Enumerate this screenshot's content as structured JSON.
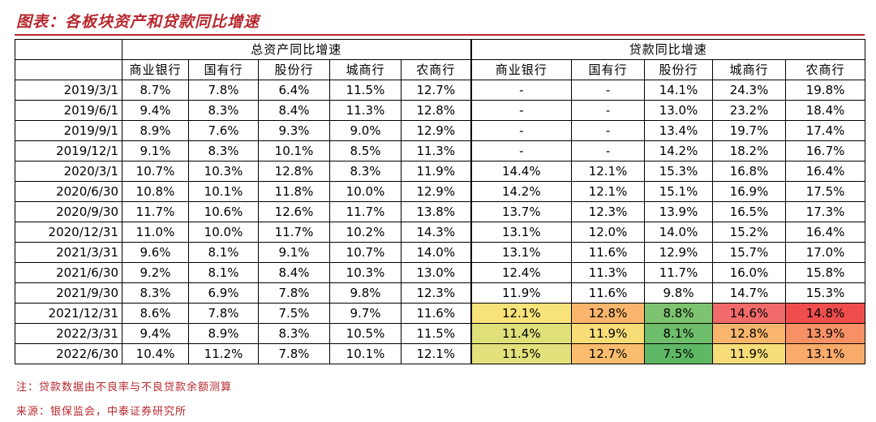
{
  "title": "图表：各板块资产和贷款同比增速",
  "header": {
    "group1": "总资产同比增速",
    "group2": "贷款同比增速",
    "columns": [
      "商业银行",
      "国有行",
      "股份行",
      "城商行",
      "农商行"
    ]
  },
  "rows": [
    {
      "date": "2019/3/1",
      "assets": [
        "8.7%",
        "7.8%",
        "6.4%",
        "11.5%",
        "12.7%"
      ],
      "loans": [
        "-",
        "-",
        "14.1%",
        "24.3%",
        "19.8%"
      ]
    },
    {
      "date": "2019/6/1",
      "assets": [
        "9.4%",
        "8.3%",
        "8.4%",
        "11.3%",
        "12.8%"
      ],
      "loans": [
        "-",
        "-",
        "13.0%",
        "23.2%",
        "18.4%"
      ]
    },
    {
      "date": "2019/9/1",
      "assets": [
        "8.9%",
        "7.6%",
        "9.3%",
        "9.0%",
        "12.9%"
      ],
      "loans": [
        "-",
        "-",
        "13.4%",
        "19.7%",
        "17.4%"
      ]
    },
    {
      "date": "2019/12/1",
      "assets": [
        "9.1%",
        "8.3%",
        "10.1%",
        "8.5%",
        "11.3%"
      ],
      "loans": [
        "-",
        "-",
        "14.2%",
        "18.2%",
        "16.7%"
      ]
    },
    {
      "date": "2020/3/1",
      "assets": [
        "10.7%",
        "10.3%",
        "12.8%",
        "8.3%",
        "11.9%"
      ],
      "loans": [
        "14.4%",
        "12.1%",
        "15.3%",
        "16.8%",
        "16.4%"
      ]
    },
    {
      "date": "2020/6/30",
      "assets": [
        "10.8%",
        "10.1%",
        "11.8%",
        "10.0%",
        "12.9%"
      ],
      "loans": [
        "14.2%",
        "12.1%",
        "15.1%",
        "16.9%",
        "17.5%"
      ]
    },
    {
      "date": "2020/9/30",
      "assets": [
        "11.7%",
        "10.6%",
        "12.6%",
        "11.7%",
        "13.8%"
      ],
      "loans": [
        "13.7%",
        "12.3%",
        "13.9%",
        "16.5%",
        "17.3%"
      ]
    },
    {
      "date": "2020/12/31",
      "assets": [
        "11.0%",
        "10.0%",
        "11.7%",
        "10.2%",
        "14.3%"
      ],
      "loans": [
        "13.1%",
        "12.0%",
        "14.0%",
        "15.2%",
        "16.4%"
      ]
    },
    {
      "date": "2021/3/31",
      "assets": [
        "9.6%",
        "8.1%",
        "9.1%",
        "10.7%",
        "14.0%"
      ],
      "loans": [
        "13.1%",
        "11.6%",
        "12.9%",
        "15.7%",
        "17.0%"
      ]
    },
    {
      "date": "2021/6/30",
      "assets": [
        "9.2%",
        "8.1%",
        "8.4%",
        "10.3%",
        "13.0%"
      ],
      "loans": [
        "12.4%",
        "11.3%",
        "11.7%",
        "16.0%",
        "15.8%"
      ]
    },
    {
      "date": "2021/9/30",
      "assets": [
        "8.3%",
        "6.9%",
        "7.8%",
        "9.8%",
        "12.3%"
      ],
      "loans": [
        "11.9%",
        "11.6%",
        "9.8%",
        "14.7%",
        "15.3%"
      ]
    },
    {
      "date": "2021/12/31",
      "assets": [
        "8.6%",
        "7.8%",
        "7.5%",
        "9.7%",
        "11.6%"
      ],
      "loans": [
        "12.1%",
        "12.8%",
        "8.8%",
        "14.6%",
        "14.8%"
      ],
      "loan_colors": [
        "#f7e37a",
        "#f9b56c",
        "#7ec36f",
        "#f26b6b",
        "#f04e4e"
      ]
    },
    {
      "date": "2022/3/31",
      "assets": [
        "9.4%",
        "8.9%",
        "8.3%",
        "10.5%",
        "11.5%"
      ],
      "loans": [
        "11.4%",
        "11.9%",
        "8.1%",
        "12.8%",
        "13.9%"
      ],
      "loan_colors": [
        "#dfe07a",
        "#f7dd78",
        "#6dbd6a",
        "#f9b56c",
        "#f79064"
      ]
    },
    {
      "date": "2022/6/30",
      "assets": [
        "10.4%",
        "11.2%",
        "7.8%",
        "10.1%",
        "12.1%"
      ],
      "loans": [
        "11.5%",
        "12.7%",
        "7.5%",
        "11.9%",
        "13.1%"
      ],
      "loan_colors": [
        "#e3e17b",
        "#f9bd6d",
        "#5fb865",
        "#f7dd78",
        "#f9ab6a"
      ]
    }
  ],
  "notes": {
    "note": "注：贷款数据由不良率与不良贷款余额测算",
    "source": "来源：银保监会，中泰证券研究所"
  },
  "colors": {
    "accent": "#b8282e"
  }
}
